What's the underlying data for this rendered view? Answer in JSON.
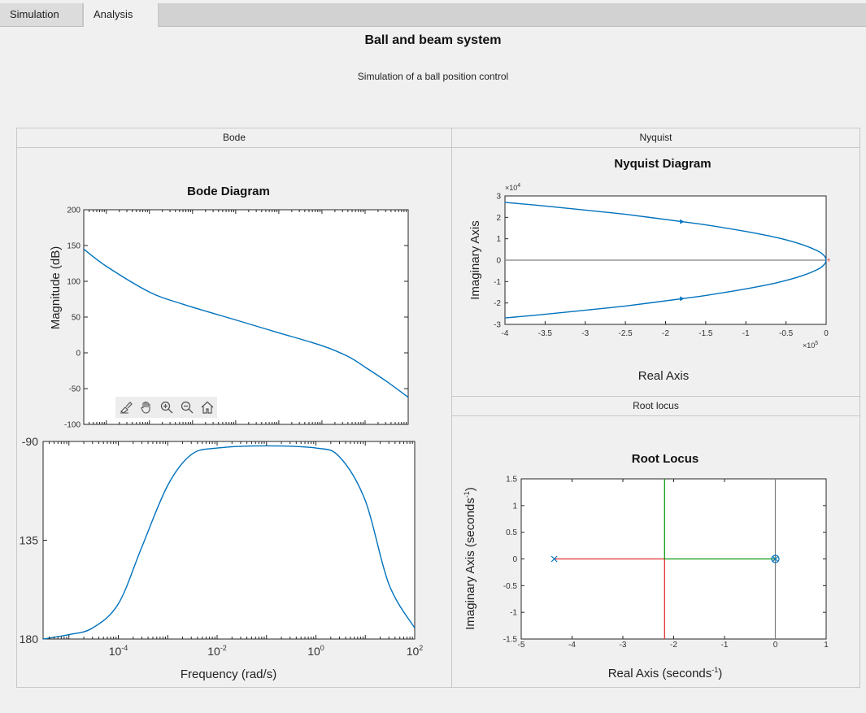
{
  "tabs": [
    {
      "label": "Simulation",
      "active": false
    },
    {
      "label": "Analysis",
      "active": true
    }
  ],
  "header": {
    "title": "Ball and beam system",
    "subtitle": "Simulation of a ball position control"
  },
  "panels": {
    "bode": "Bode",
    "nyquist": "Nyquist",
    "root_locus": "Root locus"
  },
  "toolbar_icons": [
    "brush-icon",
    "pan-hand-icon",
    "zoom-in-icon",
    "zoom-out-icon",
    "home-icon"
  ],
  "colors": {
    "line": "#0072bd",
    "red": "#e03030",
    "green": "#119911",
    "gray_axis": "#808080"
  },
  "chart_data": [
    {
      "type": "line",
      "title": "Bode Diagram",
      "xlabel": "Frequency  (rad/s)",
      "xscale": "log",
      "xlim": [
        3e-06,
        100
      ],
      "x_ticks": [
        "10-4",
        "10-2",
        "100",
        "102"
      ],
      "magnitude": {
        "ylabel": "Magnitude (dB)",
        "ylim": [
          -100,
          200
        ],
        "y_ticks": [
          "200",
          "150",
          "100",
          "50",
          "0",
          "-50",
          "-100"
        ],
        "points": [
          [
            3e-06,
            145
          ],
          [
            1e-05,
            121
          ],
          [
            0.0001,
            85
          ],
          [
            0.0006,
            68
          ],
          [
            0.01,
            46
          ],
          [
            0.1,
            28
          ],
          [
            1,
            10
          ],
          [
            4,
            -5
          ],
          [
            10,
            -20
          ],
          [
            30,
            -39
          ],
          [
            100,
            -62
          ]
        ]
      },
      "phase": {
        "ylim": [
          -180,
          -90
        ],
        "y_ticks": [
          "-90",
          "135",
          "180"
        ],
        "points": [
          [
            3e-06,
            -180
          ],
          [
            1e-05,
            -178
          ],
          [
            3e-05,
            -175
          ],
          [
            0.0001,
            -164
          ],
          [
            0.0003,
            -138
          ],
          [
            0.001,
            -110
          ],
          [
            0.003,
            -96
          ],
          [
            0.01,
            -93
          ],
          [
            0.1,
            -92
          ],
          [
            1,
            -93
          ],
          [
            3,
            -97
          ],
          [
            10,
            -117
          ],
          [
            30,
            -155
          ],
          [
            100,
            -175
          ]
        ]
      }
    },
    {
      "type": "line",
      "title": "Nyquist Diagram",
      "xlabel": "Real Axis",
      "ylabel": "Imaginary Axis",
      "xlim": [
        -400000,
        0
      ],
      "ylim": [
        -30000,
        30000
      ],
      "x_ticks": [
        "-4",
        "-3.5",
        "-3",
        "-2.5",
        "-2",
        "-1.5",
        "-1",
        "-0.5",
        "0"
      ],
      "y_ticks": [
        "3",
        "2",
        "1",
        "0",
        "-1",
        "-2",
        "-3"
      ],
      "x_exponent": "5",
      "y_exponent": "4",
      "series": [
        {
          "points": [
            [
              -400000,
              27000
            ],
            [
              -350000,
              25300
            ],
            [
              -300000,
              23400
            ],
            [
              -250000,
              21400
            ],
            [
              -180000,
              18000
            ],
            [
              -150000,
              16500
            ],
            [
              -100000,
              13400
            ],
            [
              -60000,
              10400
            ],
            [
              -30000,
              7300
            ],
            [
              -10000,
              4200
            ],
            [
              -2000,
              1900
            ],
            [
              0,
              0
            ]
          ]
        },
        {
          "points": [
            [
              -400000,
              -27000
            ],
            [
              -350000,
              -25300
            ],
            [
              -300000,
              -23400
            ],
            [
              -250000,
              -21400
            ],
            [
              -180000,
              -18000
            ],
            [
              -150000,
              -16500
            ],
            [
              -100000,
              -13400
            ],
            [
              -60000,
              -10400
            ],
            [
              -30000,
              -7300
            ],
            [
              -10000,
              -4200
            ],
            [
              -2000,
              -1900
            ],
            [
              0,
              0
            ]
          ]
        }
      ],
      "arrows": [
        [
          -180000,
          18000
        ],
        [
          -180000,
          -18000
        ]
      ],
      "critical_point": [
        -1,
        0
      ]
    },
    {
      "type": "line",
      "title": "Root Locus",
      "xlabel": "Real Axis  (seconds",
      "ylabel": "Imaginary Axis  (seconds",
      "unit_exponent": "-1",
      "xlim": [
        -5,
        1
      ],
      "ylim": [
        -1.5,
        1.5
      ],
      "x_ticks": [
        "-5",
        "-4",
        "-3",
        "-2",
        "-1",
        "0",
        "1"
      ],
      "y_ticks": [
        "1.5",
        "1",
        "0.5",
        "0",
        "-0.5",
        "-1",
        "-1.5"
      ],
      "poles": [
        [
          -4.35,
          0
        ],
        [
          0,
          0
        ]
      ],
      "zeros": [
        [
          0,
          0
        ]
      ],
      "branches": [
        {
          "color": "red",
          "points": [
            [
              -4.35,
              0
            ],
            [
              -2.18,
              0
            ],
            [
              -2.18,
              -1.5
            ]
          ]
        },
        {
          "color": "green",
          "points": [
            [
              0,
              0
            ],
            [
              -2.18,
              0
            ],
            [
              -2.18,
              1.5
            ]
          ]
        }
      ]
    }
  ]
}
